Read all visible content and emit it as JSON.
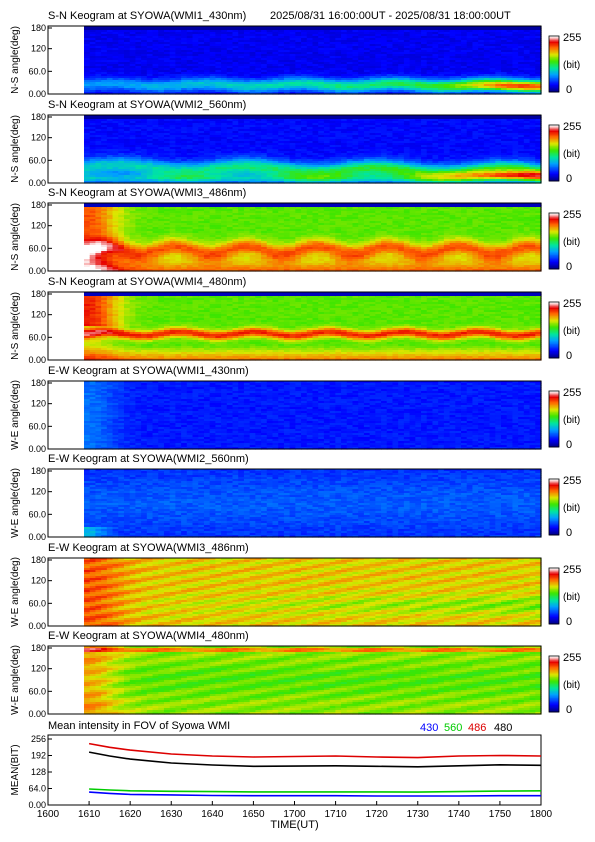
{
  "header": {
    "time_range": "2025/08/31 16:00:00UT - 2025/08/31 18:00:00UT"
  },
  "chart_data": [
    {
      "type": "heatmap",
      "title": "S-N Keogram at SYOWA(WMI1_430nm)",
      "ylabel": "N-S angle(deg)",
      "yticks": [
        "0.00",
        "60.0",
        "120",
        "180"
      ],
      "ylim": [
        0,
        180
      ],
      "colorbar": {
        "max": "255",
        "unit": "(bit)",
        "min": "0"
      },
      "style": "sn430"
    },
    {
      "type": "heatmap",
      "title": "S-N Keogram at SYOWA(WMI2_560nm)",
      "ylabel": "N-S angle(deg)",
      "yticks": [
        "0.00",
        "60.0",
        "120",
        "180"
      ],
      "ylim": [
        0,
        180
      ],
      "colorbar": {
        "max": "255",
        "unit": "(bit)",
        "min": "0"
      },
      "style": "sn560"
    },
    {
      "type": "heatmap",
      "title": "S-N Keogram at SYOWA(WMI3_486nm)",
      "ylabel": "N-S angle(deg)",
      "yticks": [
        "0.00",
        "60.0",
        "120",
        "180"
      ],
      "ylim": [
        0,
        180
      ],
      "colorbar": {
        "max": "255",
        "unit": "(bit)",
        "min": "0"
      },
      "style": "sn486"
    },
    {
      "type": "heatmap",
      "title": "S-N Keogram at SYOWA(WMI4_480nm)",
      "ylabel": "N-S angle(deg)",
      "yticks": [
        "0.00",
        "60.0",
        "120",
        "180"
      ],
      "ylim": [
        0,
        180
      ],
      "colorbar": {
        "max": "255",
        "unit": "(bit)",
        "min": "0"
      },
      "style": "sn480"
    },
    {
      "type": "heatmap",
      "title": "E-W Keogram at SYOWA(WMI1_430nm)",
      "ylabel": "W-E angle(deg)",
      "yticks": [
        "0.00",
        "60.0",
        "120",
        "180"
      ],
      "ylim": [
        0,
        180
      ],
      "colorbar": {
        "max": "255",
        "unit": "(bit)",
        "min": "0"
      },
      "style": "ew430"
    },
    {
      "type": "heatmap",
      "title": "E-W Keogram at SYOWA(WMI2_560nm)",
      "ylabel": "W-E angle(deg)",
      "yticks": [
        "0.00",
        "60.0",
        "120",
        "180"
      ],
      "ylim": [
        0,
        180
      ],
      "colorbar": {
        "max": "255",
        "unit": "(bit)",
        "min": "0"
      },
      "style": "ew560"
    },
    {
      "type": "heatmap",
      "title": "E-W Keogram at SYOWA(WMI3_486nm)",
      "ylabel": "W-E angle(deg)",
      "yticks": [
        "0.00",
        "60.0",
        "120",
        "180"
      ],
      "ylim": [
        0,
        180
      ],
      "colorbar": {
        "max": "255",
        "unit": "(bit)",
        "min": "0"
      },
      "style": "ew486"
    },
    {
      "type": "heatmap",
      "title": "E-W Keogram at SYOWA(WMI4_480nm)",
      "ylabel": "W-E angle(deg)",
      "yticks": [
        "0.00",
        "60.0",
        "120",
        "180"
      ],
      "ylim": [
        0,
        180
      ],
      "colorbar": {
        "max": "255",
        "unit": "(bit)",
        "min": "0"
      },
      "style": "ew480"
    },
    {
      "type": "line",
      "title": "Mean intensity in FOV of Syowa WMI",
      "ylabel": "MEAN(BIT)",
      "xlabel": "TIME(UT)",
      "ylim": [
        0,
        256
      ],
      "yticks": [
        "0.00",
        "64.0",
        "128",
        "192",
        "256"
      ],
      "x_ticks": [
        "1600",
        "1610",
        "1620",
        "1630",
        "1640",
        "1650",
        "1700",
        "1710",
        "1720",
        "1730",
        "1740",
        "1750",
        "1800"
      ],
      "x_minutes": [
        10,
        15,
        20,
        30,
        40,
        50,
        60,
        70,
        80,
        90,
        100,
        110,
        120
      ],
      "series": [
        {
          "name": "430",
          "color": "#0000ff",
          "values": [
            50,
            45,
            41,
            39,
            37,
            36,
            36,
            36,
            35,
            35,
            35,
            36,
            36
          ]
        },
        {
          "name": "560",
          "color": "#00cc00",
          "values": [
            62,
            58,
            55,
            53,
            52,
            51,
            51,
            51,
            51,
            50,
            52,
            54,
            55
          ]
        },
        {
          "name": "486",
          "color": "#dd0000",
          "values": [
            238,
            224,
            213,
            198,
            190,
            186,
            188,
            190,
            186,
            184,
            190,
            192,
            190
          ]
        },
        {
          "name": "480",
          "color": "#000000",
          "values": [
            205,
            190,
            178,
            163,
            155,
            150,
            151,
            152,
            150,
            148,
            152,
            156,
            154
          ]
        }
      ]
    }
  ]
}
